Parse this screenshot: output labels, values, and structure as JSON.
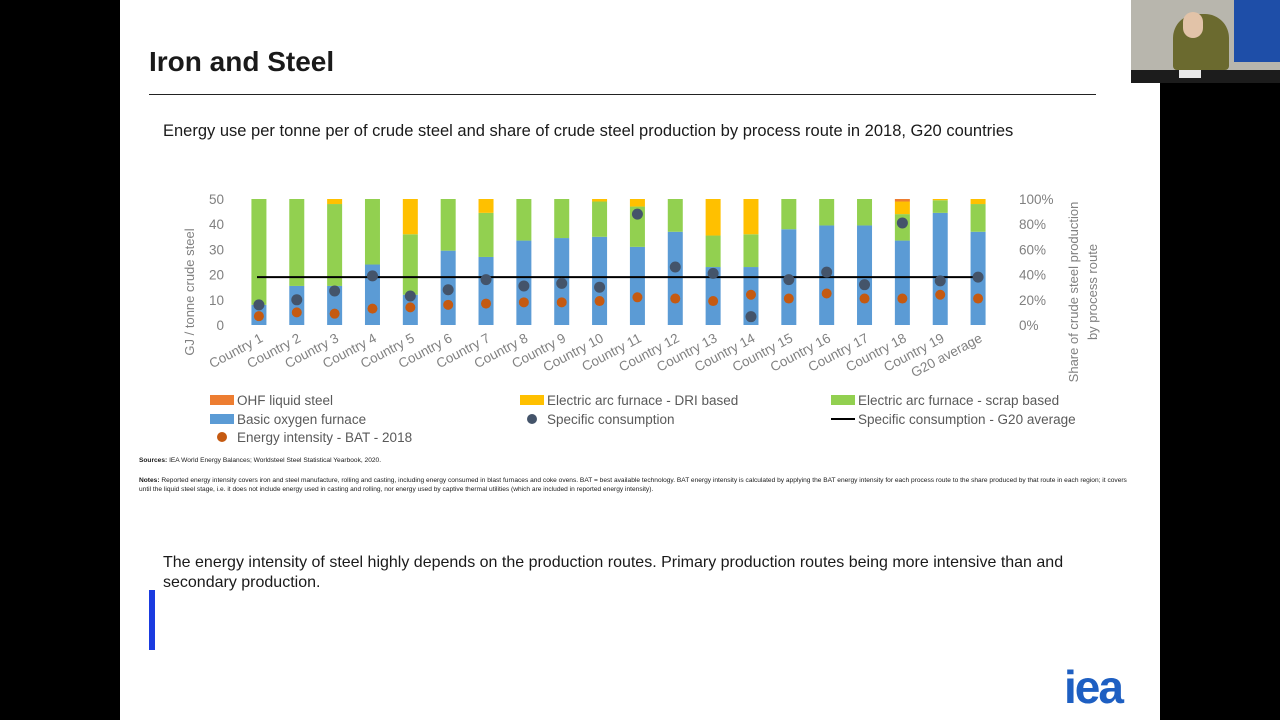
{
  "slide": {
    "title": "Iron and Steel",
    "subtitle": "Energy use per tonne per of crude steel and share of crude steel production by process route in 2018, G20 countries",
    "sources_label": "Sources:",
    "sources_text": "IEA World Energy Balances; Worldsteel Steel Statistical Yearbook, 2020.",
    "notes_label": "Notes:",
    "notes_text": "Reported energy intensity covers iron and steel manufacture, rolling and casting, including energy consumed in blast furnaces and coke ovens. BAT = best available technology. BAT energy intensity is calculated by applying the BAT energy intensity for each process route to the share produced by that route in each region; it covers until the liquid steel stage, i.e. it does not include energy used in casting and rolling, nor energy used by captive thermal utilities (which are included in reported energy intensity).",
    "body_text": "The energy intensity of steel highly depends on the production routes. Primary production routes being more intensive than and secondary production.",
    "logo_text": "iea",
    "accent_color": "#1a3be0"
  },
  "video": {
    "feed": "webcam",
    "plate_text": ""
  },
  "chart_data": {
    "type": "bar",
    "categories": [
      "Country 1",
      "Country 2",
      "Country 3",
      "Country 4",
      "Country 5",
      "Country 6",
      "Country 7",
      "Country 8",
      "Country 9",
      "Country 10",
      "Country 11",
      "Country 12",
      "Country 13",
      "Country 14",
      "Country 15",
      "Country 16",
      "Country 17",
      "Country 18",
      "Country 19",
      "G20 average"
    ],
    "ylabel": "GJ / tonne crude steel",
    "ylim": [
      0,
      50
    ],
    "yticks": [
      "0",
      "10",
      "20",
      "30",
      "40",
      "50"
    ],
    "y2label_line1": "Share of crude steel production",
    "y2label_line2": "by process route",
    "y2lim": [
      0,
      100
    ],
    "y2ticks": [
      "0%",
      "20%",
      "40%",
      "60%",
      "80%",
      "100%"
    ],
    "stacked_share_series": [
      {
        "name": "Basic oxygen furnace",
        "color": "#5b9bd5",
        "values": [
          16,
          31,
          31,
          48,
          24,
          59,
          54,
          67,
          69,
          70,
          62,
          74,
          46,
          46,
          76,
          79,
          79,
          67,
          89,
          74
        ]
      },
      {
        "name": "Electric arc furnace - scrap based",
        "color": "#92d050",
        "values": [
          84,
          69,
          65,
          52,
          48,
          41,
          35,
          33,
          31,
          28,
          32,
          26,
          25,
          26,
          24,
          21,
          21,
          21,
          10,
          22
        ]
      },
      {
        "name": "Electric arc furnace - DRI based",
        "color": "#ffc000",
        "values": [
          0,
          0,
          4,
          0,
          28,
          0,
          11,
          0,
          0,
          2,
          6,
          0,
          29,
          28,
          0,
          0,
          0,
          10,
          1,
          4
        ]
      },
      {
        "name": "OHF liquid steel",
        "color": "#ed7d31",
        "values": [
          0,
          0,
          0,
          0,
          0,
          0,
          0,
          0,
          0,
          0,
          0,
          0,
          0,
          0,
          0,
          0,
          0,
          2,
          0,
          0
        ]
      }
    ],
    "points_series": [
      {
        "name": "Specific consumption",
        "color": "#44546a",
        "values": [
          8,
          10,
          13.5,
          19.5,
          11.5,
          14,
          18,
          15.5,
          16.5,
          15,
          44,
          23,
          20.5,
          3.3004,
          18,
          21,
          16,
          40.5,
          17.5,
          19
        ]
      },
      {
        "name": "Energy intensity - BAT - 2018",
        "color": "#c55a11",
        "values": [
          3.5,
          5,
          4.5,
          6.5,
          7,
          8,
          8.5,
          9,
          9,
          9.5,
          11,
          10.5,
          9.5,
          12,
          10.5,
          12.5,
          10.5,
          10.5,
          12,
          10.5
        ]
      }
    ],
    "line_series": {
      "name": "Specific consumption - G20 average",
      "color": "#000000",
      "value": 19
    },
    "legend_position": "bottom",
    "grid": false
  }
}
